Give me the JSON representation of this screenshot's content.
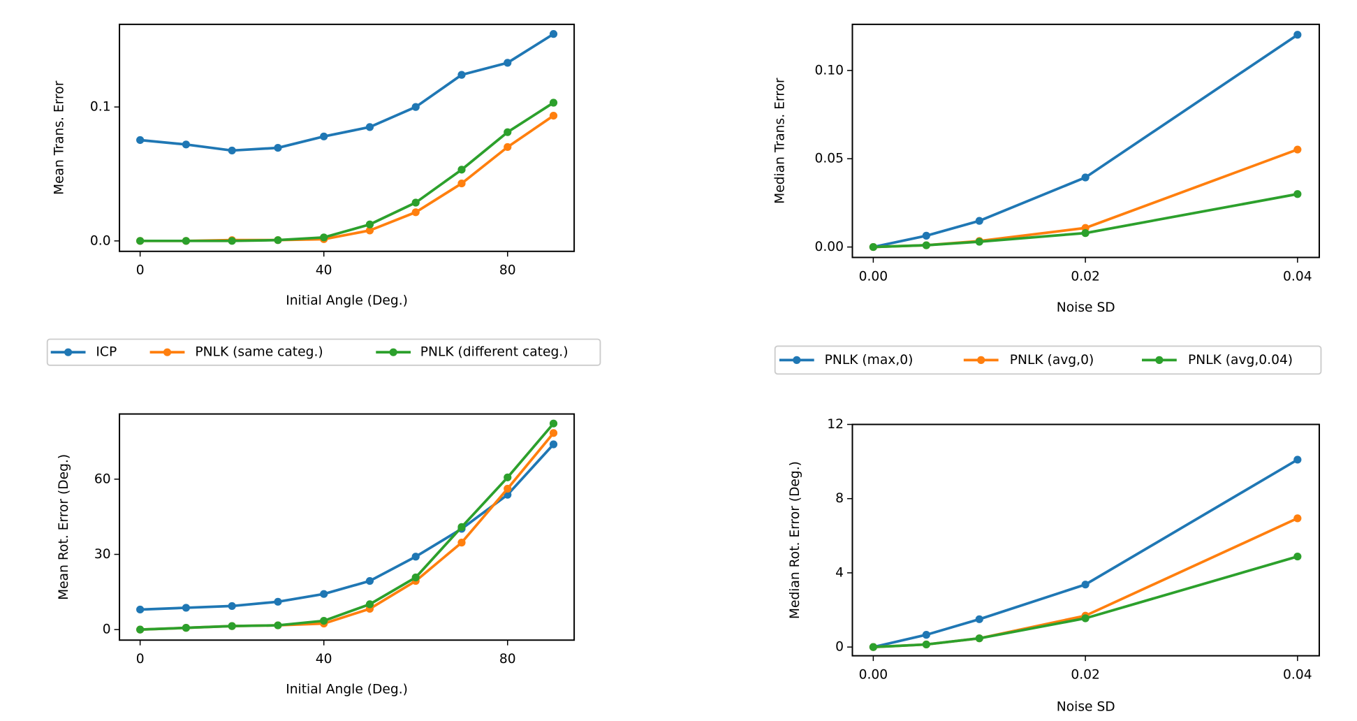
{
  "chart_data": [
    {
      "type": "line",
      "xlabel": "Initial Angle (Deg.)",
      "ylabel": "Mean Trans. Error",
      "x": [
        0,
        10,
        20,
        30,
        40,
        50,
        60,
        70,
        80,
        90
      ],
      "xlim": [
        -4.5,
        94.5
      ],
      "xticks": [
        0,
        40,
        80
      ],
      "ylim": [
        -0.0078,
        0.1617
      ],
      "yticks": [
        {
          "value": 0,
          "label": "0.0"
        },
        {
          "value": 0.1,
          "label": "0.1"
        }
      ],
      "legend": "below",
      "series": [
        {
          "name": "ICP",
          "color": "#1f77b4",
          "values": [
            0.0753,
            0.072,
            0.0675,
            0.0695,
            0.078,
            0.085,
            0.1,
            0.124,
            0.133,
            0.1545
          ]
        },
        {
          "name": "PNLK (same categ.)",
          "color": "#ff7f0e",
          "values": [
            0,
            0,
            0.0006,
            0.0006,
            0.0013,
            0.0078,
            0.0214,
            0.0429,
            0.0701,
            0.0935
          ]
        },
        {
          "name": "PNLK (different categ.)",
          "color": "#2ca02c",
          "values": [
            0,
            0,
            0,
            0.0006,
            0.0026,
            0.0123,
            0.0286,
            0.0532,
            0.0812,
            0.1032
          ]
        }
      ]
    },
    {
      "type": "line",
      "xlabel": "Noise SD",
      "ylabel": "Median Trans. Error",
      "x": [
        0,
        0.005,
        0.01,
        0.02,
        0.04
      ],
      "xlim": [
        -0.00197,
        0.04205
      ],
      "xticks": [
        {
          "value": 0,
          "label": "0.00"
        },
        {
          "value": 0.02,
          "label": "0.02"
        },
        {
          "value": 0.04,
          "label": "0.04"
        }
      ],
      "ylim": [
        -0.0059,
        0.1261
      ],
      "yticks": [
        {
          "value": 0,
          "label": "0.00"
        },
        {
          "value": 0.05,
          "label": "0.05"
        },
        {
          "value": 0.1,
          "label": "0.10"
        }
      ],
      "legend": "below",
      "series": [
        {
          "name": "PNLK (max,0)",
          "color": "#1f77b4",
          "values": [
            0,
            0.0064,
            0.0148,
            0.0394,
            0.1202
          ]
        },
        {
          "name": "PNLK (avg,0)",
          "color": "#ff7f0e",
          "values": [
            0,
            0.001,
            0.0034,
            0.0108,
            0.0552
          ]
        },
        {
          "name": "PNLK (avg,0.04)",
          "color": "#2ca02c",
          "values": [
            0,
            0.001,
            0.003,
            0.0079,
            0.03
          ]
        }
      ]
    },
    {
      "type": "line",
      "xlabel": "Initial Angle (Deg.)",
      "ylabel": "Mean Rot. Error (Deg.)",
      "x": [
        0,
        10,
        20,
        30,
        40,
        50,
        60,
        70,
        80,
        90
      ],
      "xlim": [
        -4.5,
        94.5
      ],
      "xticks": [
        0,
        40,
        80
      ],
      "ylim": [
        -4.2,
        86
      ],
      "yticks": [
        0,
        30,
        60
      ],
      "series": [
        {
          "color": "#1f77b4",
          "values": [
            8.0,
            8.7,
            9.4,
            11.1,
            14.2,
            19.4,
            29.1,
            40.2,
            53.8,
            73.9
          ]
        },
        {
          "color": "#ff7f0e",
          "values": [
            0,
            0.7,
            1.4,
            1.7,
            2.4,
            8.3,
            19.4,
            34.7,
            56.2,
            78.4
          ]
        },
        {
          "color": "#2ca02c",
          "values": [
            0,
            0.7,
            1.4,
            1.7,
            3.5,
            10.1,
            20.8,
            40.9,
            60.7,
            82.2
          ]
        }
      ]
    },
    {
      "type": "line",
      "xlabel": "Noise SD",
      "ylabel": "Median Rot. Error (Deg.)",
      "x": [
        0,
        0.005,
        0.01,
        0.02,
        0.04
      ],
      "xlim": [
        -0.00197,
        0.04205
      ],
      "xticks": [
        {
          "value": 0,
          "label": "0.00"
        },
        {
          "value": 0.02,
          "label": "0.02"
        },
        {
          "value": 0.04,
          "label": "0.04"
        }
      ],
      "ylim": [
        -0.47,
        12
      ],
      "yticks": [
        0,
        4,
        8,
        12
      ],
      "series": [
        {
          "color": "#1f77b4",
          "values": [
            0,
            0.66,
            1.5,
            3.37,
            10.1
          ]
        },
        {
          "color": "#ff7f0e",
          "values": [
            0,
            0.14,
            0.47,
            1.69,
            6.94
          ]
        },
        {
          "color": "#2ca02c",
          "values": [
            0,
            0.14,
            0.47,
            1.55,
            4.88
          ]
        }
      ]
    }
  ]
}
